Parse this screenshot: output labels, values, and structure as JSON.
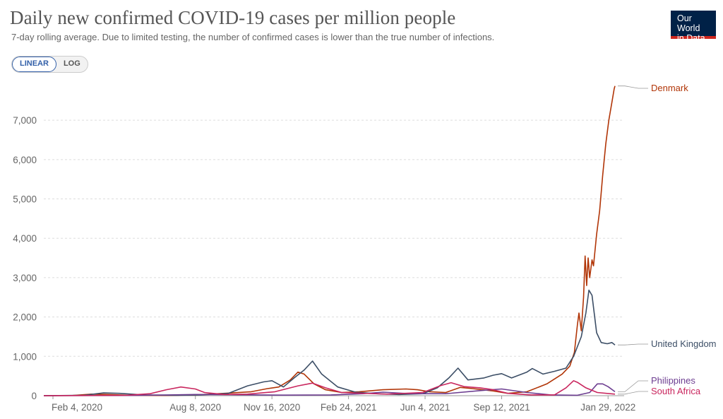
{
  "header": {
    "title": "Daily new confirmed COVID-19 cases per million people",
    "subtitle": "7-day rolling average. Due to limited testing, the number of confirmed cases is lower than the true number of infections.",
    "logo_line1": "Our World",
    "logo_line2": "in Data"
  },
  "controls": {
    "linear_label": "LINEAR",
    "log_label": "LOG",
    "selected": "LINEAR"
  },
  "colors": {
    "Denmark": "#b13507",
    "United Kingdom": "#3c4e66",
    "Philippines": "#6d3e91",
    "South Africa": "#c9265e"
  },
  "chart_data": {
    "type": "line",
    "title": "Daily new confirmed COVID-19 cases per million people",
    "subtitle": "7-day rolling average. Due to limited testing, the number of confirmed cases is lower than the true number of infections.",
    "xlabel": "",
    "ylabel": "",
    "x_axis": "date",
    "xlim": [
      "2020-01-23",
      "2022-02-19"
    ],
    "ylim": [
      0,
      7900
    ],
    "x_ticks": [
      {
        "date": "2020-02-04",
        "label": "Feb 4, 2020"
      },
      {
        "date": "2020-08-08",
        "label": "Aug 8, 2020"
      },
      {
        "date": "2020-11-16",
        "label": "Nov 16, 2020"
      },
      {
        "date": "2021-02-24",
        "label": "Feb 24, 2021"
      },
      {
        "date": "2021-06-04",
        "label": "Jun 4, 2021"
      },
      {
        "date": "2021-09-12",
        "label": "Sep 12, 2021"
      },
      {
        "date": "2022-01-29",
        "label": "Jan 29, 2022"
      }
    ],
    "y_ticks": [
      {
        "value": 0,
        "label": "0"
      },
      {
        "value": 1000,
        "label": "1,000"
      },
      {
        "value": 2000,
        "label": "2,000"
      },
      {
        "value": 3000,
        "label": "3,000"
      },
      {
        "value": 4000,
        "label": "4,000"
      },
      {
        "value": 5000,
        "label": "5,000"
      },
      {
        "value": 6000,
        "label": "6,000"
      },
      {
        "value": 7000,
        "label": "7,000"
      }
    ],
    "grid": "horizontal dashed",
    "legend": "labels at line ends, right",
    "series": [
      {
        "name": "Denmark",
        "points": [
          [
            "2020-01-23",
            0
          ],
          [
            "2020-03-01",
            5
          ],
          [
            "2020-03-25",
            40
          ],
          [
            "2020-04-15",
            30
          ],
          [
            "2020-05-15",
            10
          ],
          [
            "2020-07-01",
            5
          ],
          [
            "2020-08-08",
            20
          ],
          [
            "2020-09-15",
            60
          ],
          [
            "2020-10-20",
            100
          ],
          [
            "2020-11-10",
            180
          ],
          [
            "2020-11-25",
            220
          ],
          [
            "2020-12-10",
            400
          ],
          [
            "2020-12-20",
            600
          ],
          [
            "2020-12-28",
            550
          ],
          [
            "2021-01-10",
            300
          ],
          [
            "2021-01-25",
            150
          ],
          [
            "2021-02-15",
            80
          ],
          [
            "2021-03-10",
            100
          ],
          [
            "2021-04-10",
            150
          ],
          [
            "2021-05-10",
            170
          ],
          [
            "2021-05-25",
            150
          ],
          [
            "2021-06-10",
            100
          ],
          [
            "2021-07-01",
            80
          ],
          [
            "2021-07-20",
            210
          ],
          [
            "2021-08-05",
            180
          ],
          [
            "2021-09-01",
            120
          ],
          [
            "2021-09-20",
            60
          ],
          [
            "2021-10-15",
            100
          ],
          [
            "2021-11-10",
            300
          ],
          [
            "2021-11-30",
            550
          ],
          [
            "2021-12-10",
            750
          ],
          [
            "2021-12-16",
            1100
          ],
          [
            "2021-12-20",
            1800
          ],
          [
            "2021-12-22",
            2100
          ],
          [
            "2021-12-25",
            1650
          ],
          [
            "2021-12-28",
            2500
          ],
          [
            "2021-12-30",
            3550
          ],
          [
            "2022-01-01",
            2800
          ],
          [
            "2022-01-03",
            3500
          ],
          [
            "2022-01-05",
            3000
          ],
          [
            "2022-01-08",
            3450
          ],
          [
            "2022-01-10",
            3300
          ],
          [
            "2022-01-14",
            4100
          ],
          [
            "2022-01-18",
            4700
          ],
          [
            "2022-01-22",
            5600
          ],
          [
            "2022-01-26",
            6400
          ],
          [
            "2022-01-30",
            7000
          ],
          [
            "2022-02-03",
            7450
          ],
          [
            "2022-02-06",
            7800
          ],
          [
            "2022-02-07",
            7870
          ]
        ]
      },
      {
        "name": "United Kingdom",
        "points": [
          [
            "2020-01-23",
            0
          ],
          [
            "2020-03-15",
            10
          ],
          [
            "2020-04-10",
            70
          ],
          [
            "2020-05-01",
            60
          ],
          [
            "2020-06-01",
            20
          ],
          [
            "2020-07-15",
            10
          ],
          [
            "2020-08-15",
            20
          ],
          [
            "2020-09-20",
            60
          ],
          [
            "2020-10-15",
            250
          ],
          [
            "2020-11-05",
            350
          ],
          [
            "2020-11-16",
            380
          ],
          [
            "2020-12-01",
            220
          ],
          [
            "2020-12-15",
            450
          ],
          [
            "2020-12-28",
            650
          ],
          [
            "2021-01-08",
            880
          ],
          [
            "2021-01-20",
            550
          ],
          [
            "2021-02-10",
            220
          ],
          [
            "2021-03-05",
            90
          ],
          [
            "2021-04-01",
            50
          ],
          [
            "2021-05-01",
            30
          ],
          [
            "2021-06-01",
            50
          ],
          [
            "2021-06-20",
            200
          ],
          [
            "2021-07-05",
            450
          ],
          [
            "2021-07-17",
            700
          ],
          [
            "2021-07-30",
            400
          ],
          [
            "2021-08-20",
            450
          ],
          [
            "2021-09-01",
            520
          ],
          [
            "2021-09-12",
            560
          ],
          [
            "2021-09-25",
            450
          ],
          [
            "2021-10-15",
            600
          ],
          [
            "2021-10-22",
            690
          ],
          [
            "2021-11-05",
            550
          ],
          [
            "2021-11-20",
            620
          ],
          [
            "2021-12-05",
            700
          ],
          [
            "2021-12-15",
            1000
          ],
          [
            "2021-12-25",
            1500
          ],
          [
            "2021-12-31",
            2100
          ],
          [
            "2022-01-04",
            2680
          ],
          [
            "2022-01-08",
            2550
          ],
          [
            "2022-01-14",
            1600
          ],
          [
            "2022-01-20",
            1350
          ],
          [
            "2022-01-28",
            1320
          ],
          [
            "2022-02-03",
            1350
          ],
          [
            "2022-02-07",
            1290
          ]
        ]
      },
      {
        "name": "Philippines",
        "points": [
          [
            "2020-01-23",
            0
          ],
          [
            "2020-05-15",
            5
          ],
          [
            "2020-08-08",
            30
          ],
          [
            "2020-09-20",
            25
          ],
          [
            "2020-12-01",
            15
          ],
          [
            "2021-02-01",
            20
          ],
          [
            "2021-03-15",
            50
          ],
          [
            "2021-04-10",
            90
          ],
          [
            "2021-05-15",
            50
          ],
          [
            "2021-07-01",
            50
          ],
          [
            "2021-08-15",
            130
          ],
          [
            "2021-09-12",
            170
          ],
          [
            "2021-10-15",
            80
          ],
          [
            "2021-11-15",
            20
          ],
          [
            "2021-12-20",
            10
          ],
          [
            "2022-01-05",
            80
          ],
          [
            "2022-01-15",
            300
          ],
          [
            "2022-01-22",
            300
          ],
          [
            "2022-01-29",
            230
          ],
          [
            "2022-02-07",
            100
          ]
        ]
      },
      {
        "name": "South Africa",
        "points": [
          [
            "2020-01-23",
            0
          ],
          [
            "2020-05-10",
            10
          ],
          [
            "2020-06-10",
            50
          ],
          [
            "2020-07-01",
            150
          ],
          [
            "2020-07-20",
            220
          ],
          [
            "2020-08-08",
            170
          ],
          [
            "2020-08-20",
            80
          ],
          [
            "2020-09-15",
            30
          ],
          [
            "2020-10-15",
            40
          ],
          [
            "2020-11-20",
            100
          ],
          [
            "2020-12-20",
            250
          ],
          [
            "2021-01-08",
            320
          ],
          [
            "2021-01-25",
            200
          ],
          [
            "2021-02-15",
            80
          ],
          [
            "2021-04-15",
            40
          ],
          [
            "2021-06-01",
            80
          ],
          [
            "2021-06-25",
            260
          ],
          [
            "2021-07-08",
            330
          ],
          [
            "2021-07-25",
            230
          ],
          [
            "2021-08-15",
            200
          ],
          [
            "2021-09-01",
            150
          ],
          [
            "2021-09-20",
            60
          ],
          [
            "2021-10-20",
            20
          ],
          [
            "2021-11-20",
            20
          ],
          [
            "2021-12-05",
            200
          ],
          [
            "2021-12-15",
            380
          ],
          [
            "2021-12-20",
            340
          ],
          [
            "2021-12-31",
            200
          ],
          [
            "2022-01-15",
            80
          ],
          [
            "2022-02-07",
            40
          ]
        ]
      }
    ],
    "end_labels": [
      "Denmark",
      "United Kingdom",
      "Philippines",
      "South Africa"
    ]
  }
}
